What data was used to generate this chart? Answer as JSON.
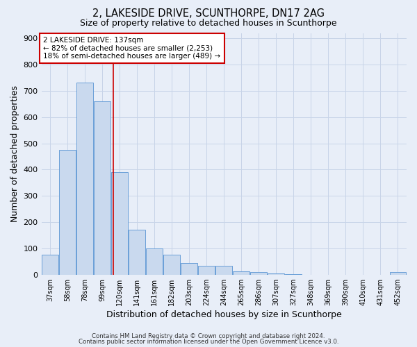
{
  "title": "2, LAKESIDE DRIVE, SCUNTHORPE, DN17 2AG",
  "subtitle": "Size of property relative to detached houses in Scunthorpe",
  "xlabel": "Distribution of detached houses by size in Scunthorpe",
  "ylabel": "Number of detached properties",
  "bar_labels": [
    "37sqm",
    "58sqm",
    "78sqm",
    "99sqm",
    "120sqm",
    "141sqm",
    "161sqm",
    "182sqm",
    "203sqm",
    "224sqm",
    "244sqm",
    "265sqm",
    "286sqm",
    "307sqm",
    "327sqm",
    "348sqm",
    "369sqm",
    "390sqm",
    "410sqm",
    "431sqm",
    "452sqm"
  ],
  "bar_values": [
    75,
    475,
    730,
    660,
    390,
    170,
    100,
    75,
    45,
    33,
    33,
    13,
    10,
    5,
    3,
    0,
    0,
    0,
    0,
    0,
    10
  ],
  "bar_color": "#c9d9ee",
  "bar_edge_color": "#6a9fd8",
  "vline_x": 3.62,
  "vline_color": "#cc0000",
  "ylim": [
    0,
    920
  ],
  "yticks": [
    0,
    100,
    200,
    300,
    400,
    500,
    600,
    700,
    800,
    900
  ],
  "annotation_title": "2 LAKESIDE DRIVE: 137sqm",
  "annotation_line1": "← 82% of detached houses are smaller (2,253)",
  "annotation_line2": "18% of semi-detached houses are larger (489) →",
  "annotation_box_color": "white",
  "annotation_box_edge": "#cc0000",
  "grid_color": "#c8d4e8",
  "background_color": "#e8eef8",
  "footer1": "Contains HM Land Registry data © Crown copyright and database right 2024.",
  "footer2": "Contains public sector information licensed under the Open Government Licence v3.0."
}
